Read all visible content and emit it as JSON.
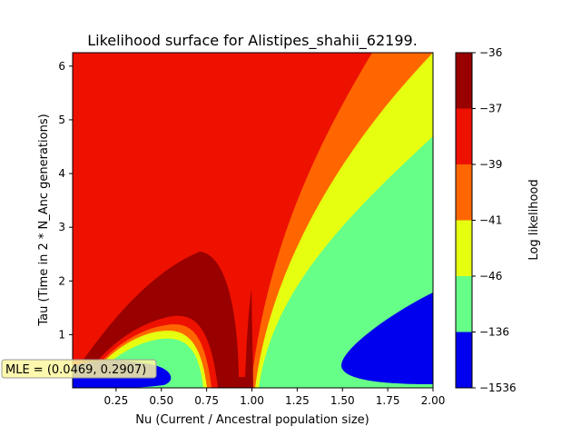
{
  "chart_data": {
    "type": "contour",
    "title": "Likelihood surface for Alistipes_shahii_62199.",
    "xlabel": "Nu (Current / Ancestral population size)",
    "ylabel": "Tau (Time in 2 * N_Anc generations)",
    "xlim": [
      0.01,
      2.0
    ],
    "ylim": [
      0.01,
      6.25
    ],
    "x_ticks": [
      "0.25",
      "0.50",
      "0.75",
      "1.00",
      "1.25",
      "1.50",
      "1.75",
      "2.00"
    ],
    "y_ticks": [
      "1",
      "2",
      "3",
      "4",
      "5",
      "6"
    ],
    "colorbar": {
      "label": "Log likelihood",
      "levels": [
        "-36",
        "-37",
        "-39",
        "-41",
        "-46",
        "-136",
        "-1536"
      ],
      "colors": [
        "#990000",
        "#ee1100",
        "#ff6600",
        "#e6ff11",
        "#66ff88",
        "#0000ee"
      ]
    },
    "annotation": "MLE = (0.0469, 0.2907)",
    "mle": {
      "nu": 0.0469,
      "tau": 0.2907
    }
  }
}
